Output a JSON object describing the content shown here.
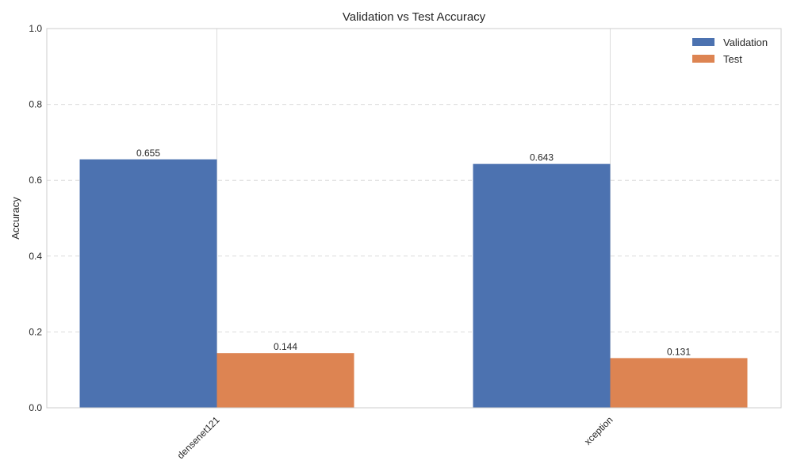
{
  "chart_data": {
    "type": "bar",
    "title": "Validation vs Test Accuracy",
    "xlabel": "",
    "ylabel": "Accuracy",
    "categories": [
      "densenet121",
      "xception"
    ],
    "series": [
      {
        "name": "Validation",
        "values": [
          0.655,
          0.643
        ],
        "labels": [
          "0.655",
          "0.643"
        ],
        "color": "#4c72b0"
      },
      {
        "name": "Test",
        "values": [
          0.144,
          0.131
        ],
        "labels": [
          "0.144",
          "0.131"
        ],
        "color": "#dd8452"
      }
    ],
    "ylim": [
      0,
      1.0
    ],
    "yticks": [
      0.0,
      0.2,
      0.4,
      0.6,
      0.8,
      1.0
    ],
    "ytick_labels": [
      "0.0",
      "0.2",
      "0.4",
      "0.6",
      "0.8",
      "1.0"
    ],
    "grid": "y-dashed, x-solid",
    "legend_position": "top-right"
  }
}
